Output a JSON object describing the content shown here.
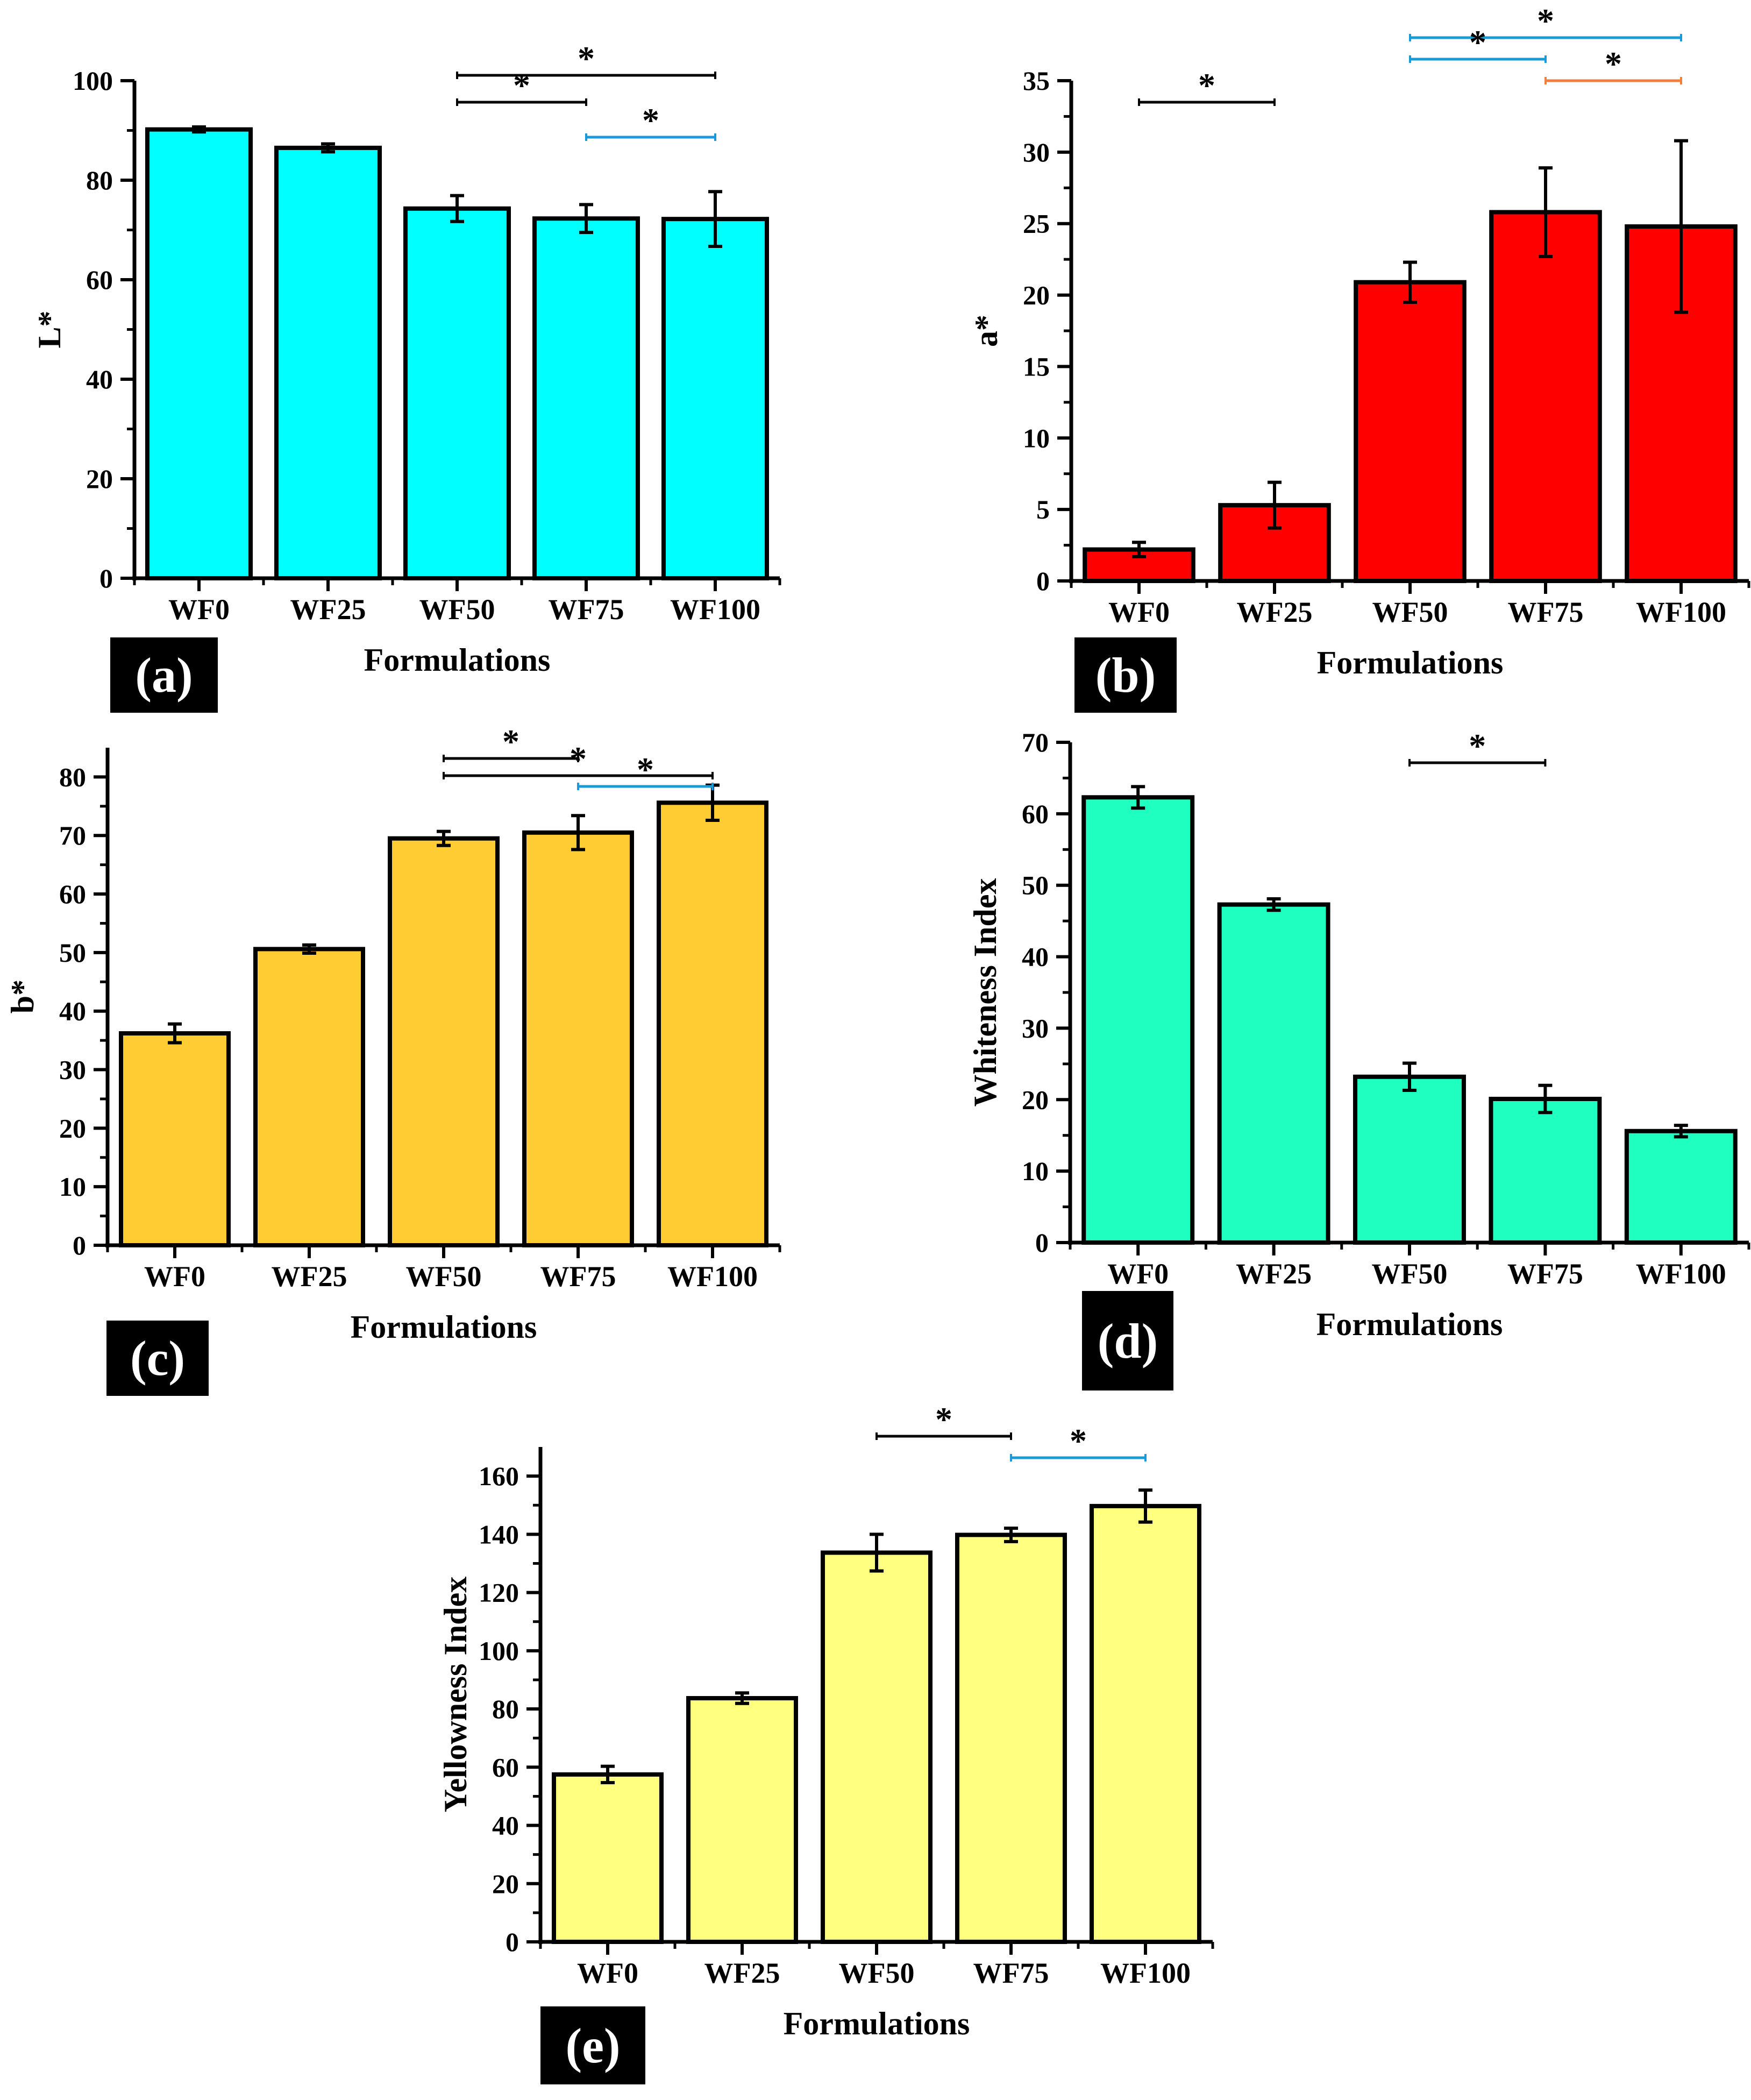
{
  "colors": {
    "black": "#000000",
    "blue_sig": "#1a9ad6",
    "orange_sig": "#f07f3c"
  },
  "chart_data": [
    {
      "id": "a",
      "tag": "(a)",
      "type": "bar",
      "categories": [
        "WF0",
        "WF25",
        "WF50",
        "WF75",
        "WF100"
      ],
      "values": [
        90.2,
        86.5,
        74.3,
        72.3,
        72.2
      ],
      "errors": [
        0.5,
        0.8,
        2.6,
        2.8,
        5.5
      ],
      "ylabel": "L*",
      "xlabel": "Formulations",
      "ylim": [
        0,
        100
      ],
      "yticks": [
        0,
        20,
        40,
        60,
        80,
        100
      ],
      "bar_color": "#00ffff",
      "significance": [
        {
          "from": "WF50",
          "to": "WF100",
          "label": "*",
          "color": "#000000"
        },
        {
          "from": "WF50",
          "to": "WF75",
          "label": "*",
          "color": "#000000"
        },
        {
          "from": "WF75",
          "to": "WF100",
          "label": "*",
          "color": "#1a9ad6"
        }
      ]
    },
    {
      "id": "b",
      "tag": "(b)",
      "type": "bar",
      "categories": [
        "WF0",
        "WF25",
        "WF50",
        "WF75",
        "WF100"
      ],
      "values": [
        2.2,
        5.3,
        20.9,
        25.8,
        24.8
      ],
      "errors": [
        0.5,
        1.6,
        1.4,
        3.1,
        6.0
      ],
      "ylabel": "a*",
      "xlabel": "Formulations",
      "ylim": [
        0,
        35
      ],
      "yticks": [
        0,
        5,
        10,
        15,
        20,
        25,
        30,
        35
      ],
      "bar_color": "#ff0000",
      "significance": [
        {
          "from": "WF0",
          "to": "WF25",
          "label": "*",
          "color": "#000000"
        },
        {
          "from": "WF50",
          "to": "WF100",
          "label": "*",
          "color": "#1a9ad6"
        },
        {
          "from": "WF50",
          "to": "WF75",
          "label": "*",
          "color": "#1a9ad6"
        },
        {
          "from": "WF75",
          "to": "WF100",
          "label": "*",
          "color": "#f07f3c"
        }
      ]
    },
    {
      "id": "c",
      "tag": "(c)",
      "type": "bar",
      "categories": [
        "WF0",
        "WF25",
        "WF50",
        "WF75",
        "WF100"
      ],
      "values": [
        36.2,
        50.6,
        69.5,
        70.5,
        75.6
      ],
      "errors": [
        1.6,
        0.7,
        1.2,
        2.9,
        3.0
      ],
      "ylabel": "b*",
      "xlabel": "Formulations",
      "ylim": [
        0,
        85
      ],
      "yticks": [
        0,
        10,
        20,
        30,
        40,
        50,
        60,
        70,
        80
      ],
      "bar_color": "#ffcc33",
      "significance": [
        {
          "from": "WF50",
          "to": "WF100",
          "label": "*",
          "color": "#000000"
        },
        {
          "from": "WF50",
          "to": "WF75",
          "label": "*",
          "color": "#000000"
        },
        {
          "from": "WF75",
          "to": "WF100",
          "label": "*",
          "color": "#1a9ad6"
        }
      ]
    },
    {
      "id": "d",
      "tag": "(d)",
      "type": "bar",
      "categories": [
        "WF0",
        "WF25",
        "WF50",
        "WF75",
        "WF100"
      ],
      "values": [
        62.3,
        47.3,
        23.2,
        20.1,
        15.6
      ],
      "errors": [
        1.5,
        0.8,
        1.9,
        1.9,
        0.8
      ],
      "ylabel": "Whiteness Index",
      "xlabel": "Formulations",
      "ylim": [
        0,
        70
      ],
      "yticks": [
        0,
        10,
        20,
        30,
        40,
        50,
        60,
        70
      ],
      "bar_color": "#1fffc0",
      "significance": [
        {
          "from": "WF50",
          "to": "WF75",
          "label": "*",
          "color": "#000000"
        }
      ]
    },
    {
      "id": "e",
      "tag": "(e)",
      "type": "bar",
      "categories": [
        "WF0",
        "WF25",
        "WF50",
        "WF75",
        "WF100"
      ],
      "values": [
        57.5,
        83.7,
        133.7,
        139.8,
        149.7
      ],
      "errors": [
        2.8,
        1.8,
        6.3,
        2.3,
        5.5
      ],
      "ylabel": "Yellowness Index",
      "xlabel": "Formulations",
      "ylim": [
        0,
        170
      ],
      "yticks": [
        0,
        20,
        40,
        60,
        80,
        100,
        120,
        140,
        160
      ],
      "bar_color": "#ffff80",
      "significance": [
        {
          "from": "WF50",
          "to": "WF75",
          "label": "*",
          "color": "#000000"
        },
        {
          "from": "WF75",
          "to": "WF100",
          "label": "*",
          "color": "#1a9ad6"
        }
      ]
    }
  ]
}
